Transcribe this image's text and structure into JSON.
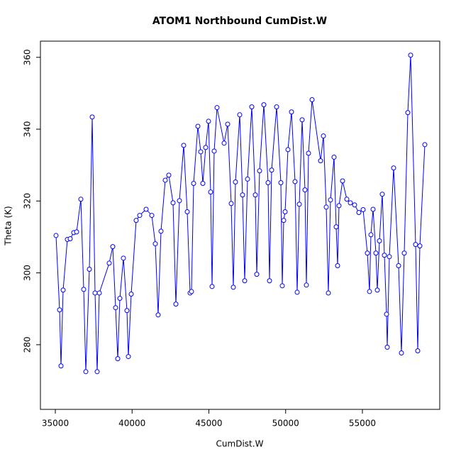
{
  "chart_data": {
    "type": "line",
    "title": "ATOM1 Northbound CumDist.W",
    "x_label": "CumDist.W",
    "y_label": "Theta (K)",
    "color": "#0000ff",
    "markers": true,
    "x": [
      35046,
      35277,
      35370,
      35508,
      35785,
      35970,
      36200,
      36386,
      36663,
      36848,
      36986,
      37217,
      37402,
      37587,
      37725,
      37864,
      38510,
      38741,
      38926,
      39065,
      39203,
      39434,
      39665,
      39758,
      39942,
      40266,
      40497,
      40912,
      41282,
      41513,
      41697,
      41882,
      42159,
      42390,
      42667,
      42852,
      43083,
      43360,
      43591,
      43776,
      43868,
      44007,
      44284,
      44469,
      44607,
      44792,
      44977,
      45115,
      45208,
      45346,
      45531,
      45993,
      46224,
      46455,
      46593,
      46732,
      47009,
      47194,
      47333,
      47517,
      47794,
      48025,
      48118,
      48303,
      48580,
      48857,
      48949,
      49088,
      49411,
      49688,
      49781,
      49873,
      49965,
      50150,
      50381,
      50612,
      50751,
      50889,
      51074,
      51259,
      51351,
      51490,
      51721,
      52275,
      52460,
      52644,
      52783,
      52921,
      53152,
      53291,
      53383,
      53476,
      53707,
      53984,
      54215,
      54492,
      54769,
      55046,
      55323,
      55462,
      55554,
      55693,
      55878,
      55970,
      56109,
      56293,
      56432,
      56570,
      56617,
      56755,
      57032,
      57356,
      57540,
      57725,
      57956,
      58141,
      58464,
      58603,
      58741,
      59065
    ],
    "values": [
      310.4,
      289.7,
      274.1,
      295.2,
      309.3,
      309.5,
      311.2,
      311.4,
      320.5,
      295.4,
      272.5,
      301.0,
      343.4,
      294.4,
      272.5,
      294.4,
      302.7,
      307.3,
      290.3,
      276.1,
      292.9,
      304.1,
      289.5,
      276.7,
      294.1,
      314.6,
      316.0,
      317.7,
      316.0,
      308.1,
      288.3,
      311.6,
      325.8,
      327.2,
      319.5,
      291.3,
      320.1,
      335.5,
      317.0,
      294.4,
      294.8,
      324.9,
      340.8,
      333.7,
      324.9,
      334.9,
      342.2,
      322.5,
      296.2,
      333.9,
      346.0,
      336.1,
      341.4,
      319.3,
      296.0,
      325.3,
      344.0,
      321.7,
      297.8,
      326.1,
      346.2,
      321.7,
      299.6,
      328.4,
      346.8,
      325.1,
      297.8,
      328.6,
      346.2,
      325.1,
      296.4,
      314.6,
      317.0,
      334.3,
      344.8,
      325.4,
      294.6,
      319.1,
      342.6,
      323.1,
      296.6,
      333.3,
      348.2,
      331.2,
      338.1,
      318.3,
      294.4,
      320.3,
      332.2,
      312.8,
      302.0,
      318.7,
      325.6,
      320.5,
      319.5,
      318.9,
      316.8,
      317.6,
      305.5,
      294.8,
      310.6,
      317.7,
      305.5,
      295.2,
      308.9,
      321.9,
      304.9,
      288.5,
      279.3,
      304.5,
      329.2,
      302.0,
      277.7,
      305.5,
      344.6,
      360.6,
      307.9,
      278.3,
      307.5,
      335.7
    ],
    "xlim": [
      34030,
      60035
    ],
    "ylim": [
      262,
      364.5
    ],
    "xticks": [
      35000,
      40000,
      45000,
      50000,
      55000
    ],
    "yticks": [
      280,
      300,
      320,
      340,
      360
    ]
  }
}
